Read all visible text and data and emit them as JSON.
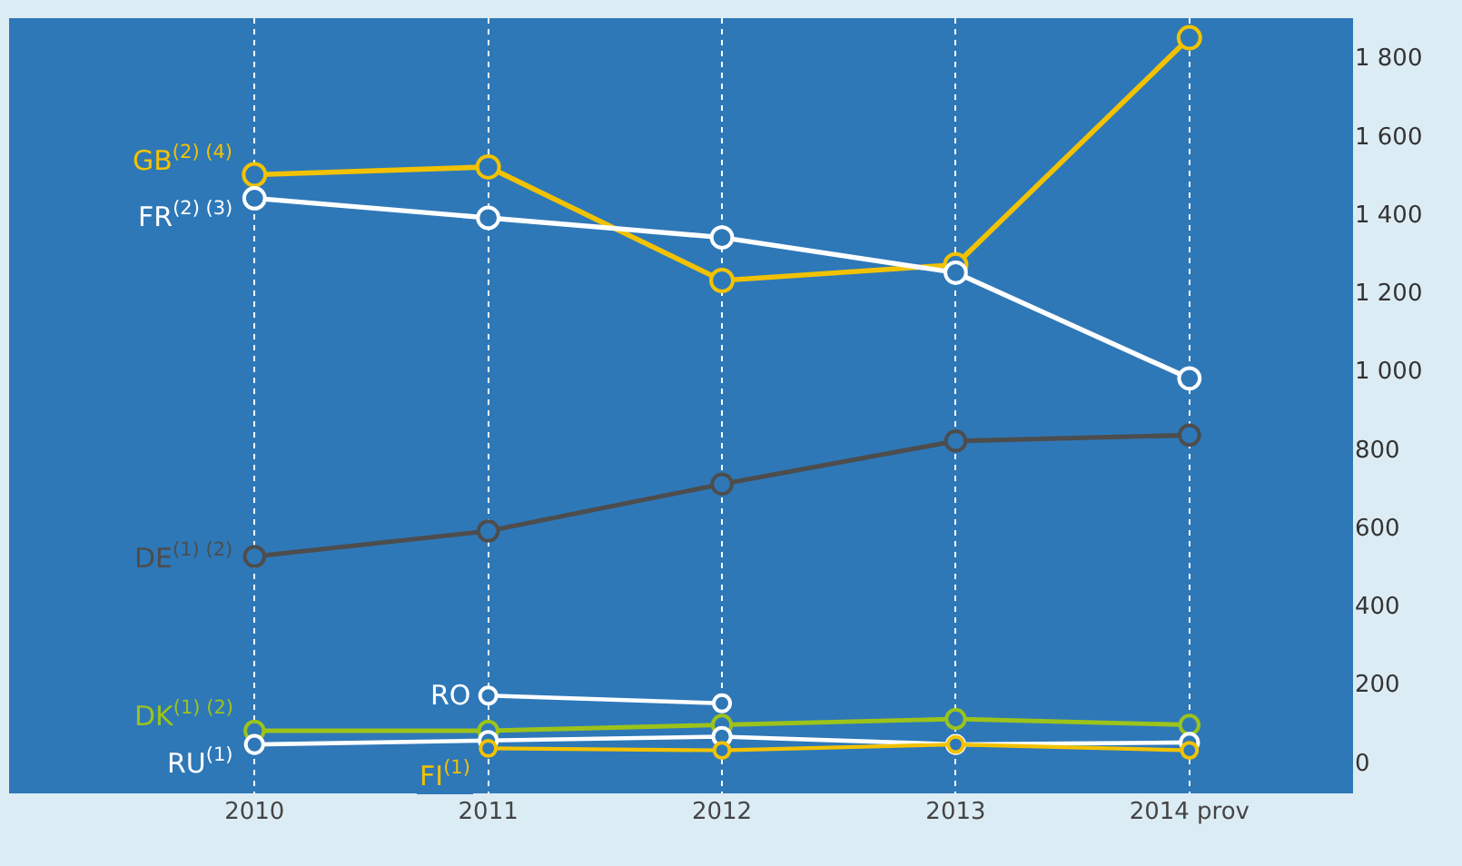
{
  "chart_data": {
    "type": "line",
    "categories": [
      "2010",
      "2011",
      "2012",
      "2013",
      "2014 prov"
    ],
    "series": [
      {
        "name": "GB$^{(2) (4)}$",
        "color": "#f2c200",
        "values": [
          1500,
          1520,
          1230,
          1270,
          1850
        ]
      },
      {
        "name": "FR$^{(2) (3)}$",
        "color": "#ffffff",
        "values": [
          1440,
          1390,
          1340,
          1250,
          980
        ]
      },
      {
        "name": "DE$^{(1) (2)}$",
        "color": "#4d4d4d",
        "values": [
          525,
          590,
          710,
          820,
          835
        ]
      },
      {
        "name": "DK$^{(1) (2)}$",
        "color": "#9cc31a",
        "values": [
          80,
          80,
          95,
          110,
          95
        ]
      },
      {
        "name": "RU$^{(1)}$",
        "color": "#ffffff",
        "values": [
          45,
          55,
          65,
          45,
          50
        ]
      },
      {
        "name": "RO",
        "color": "#ffffff",
        "values": [
          null,
          170,
          150,
          null,
          null
        ]
      },
      {
        "name": "FI$^{(1)}$",
        "color": "#f2c200",
        "values": [
          null,
          35,
          30,
          45,
          30
        ]
      }
    ],
    "ylim": [
      -80,
      1900
    ],
    "yticks": [
      0,
      200,
      400,
      600,
      800,
      {
        "value": 1000,
        "label": "1 000"
      },
      {
        "value": 1200,
        "label": "1 200"
      },
      {
        "value": 1400,
        "label": "1 400"
      },
      {
        "value": 1600,
        "label": "1 600"
      },
      {
        "value": 1800,
        "label": "1 800"
      }
    ],
    "grid": "x",
    "legend": false,
    "marker": "circle",
    "line_style": "solid"
  }
}
